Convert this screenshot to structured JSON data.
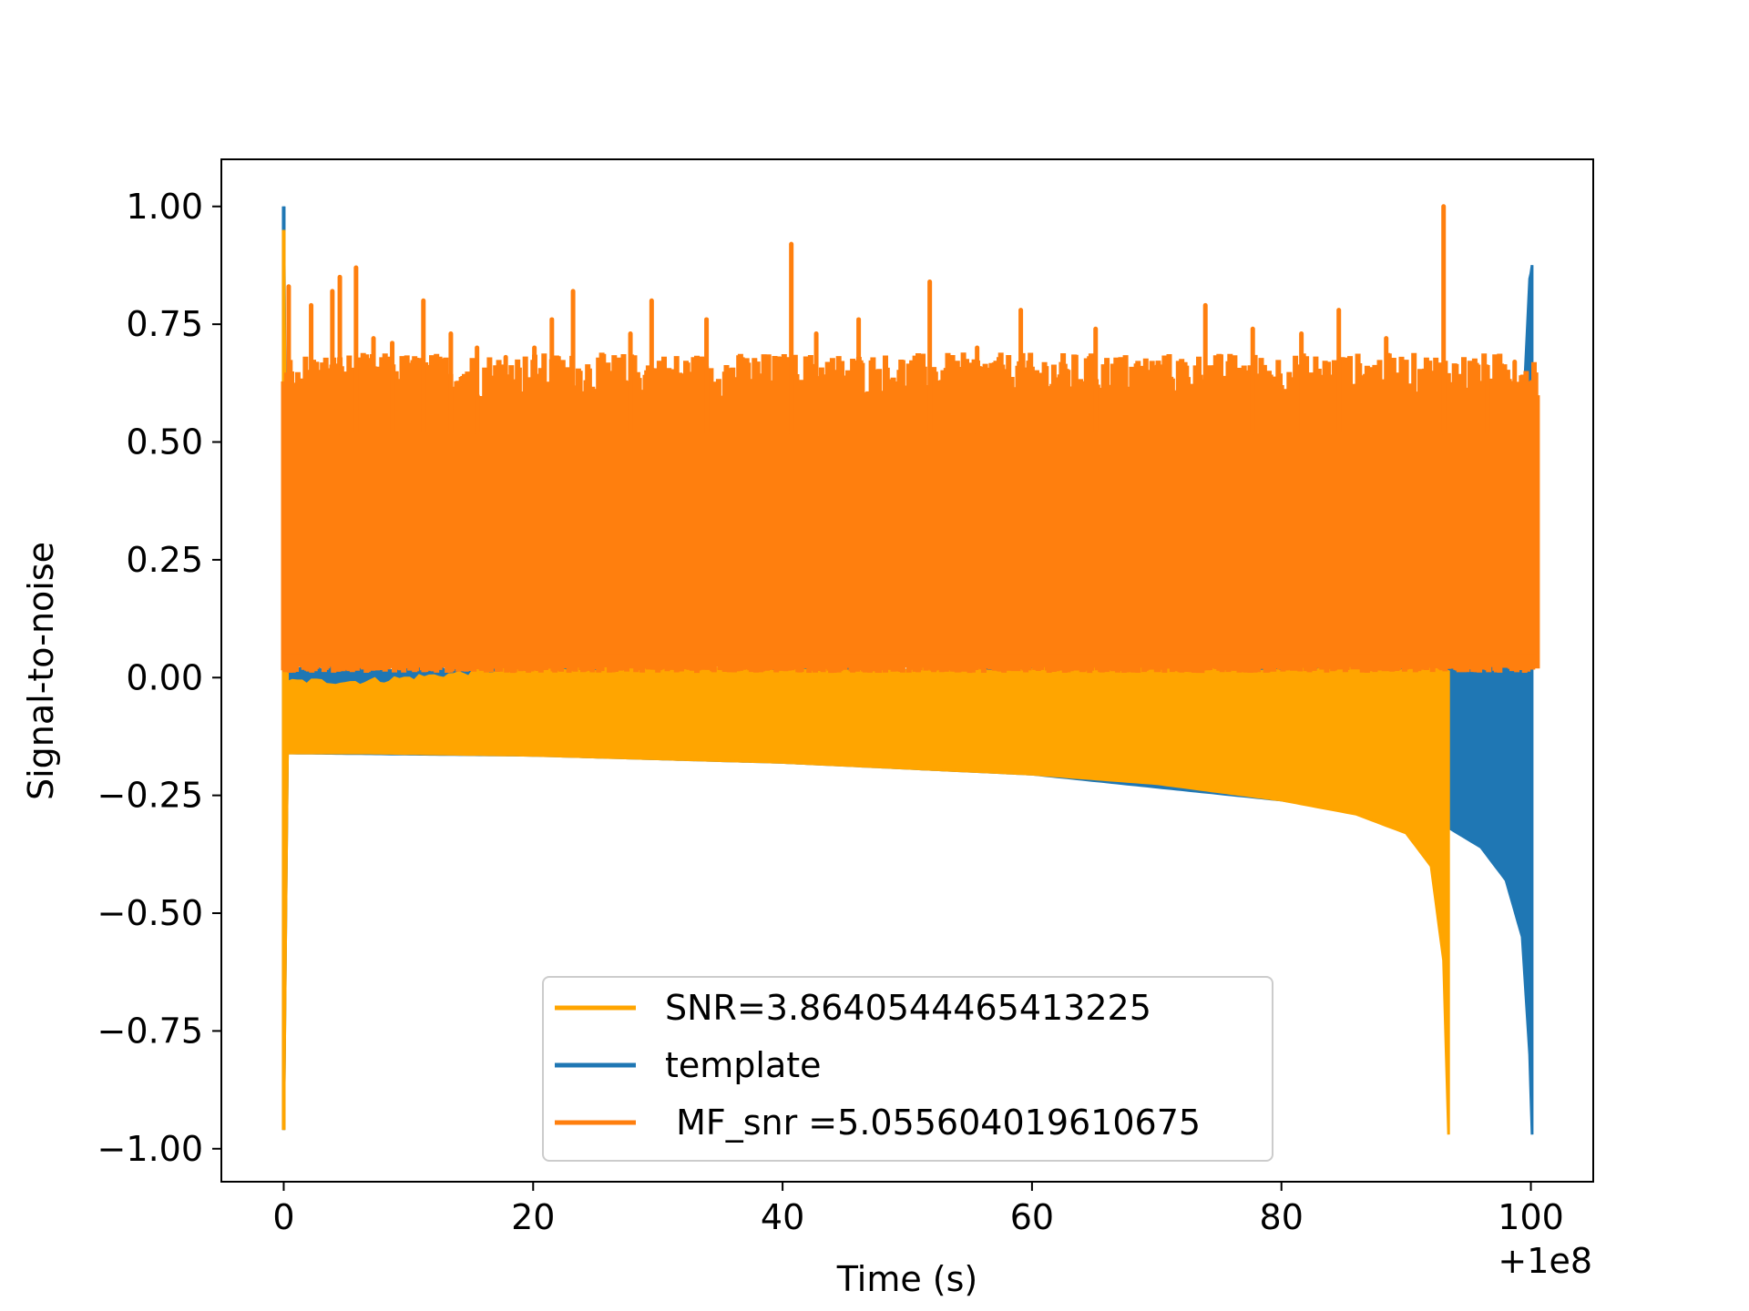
{
  "chart_data": {
    "type": "line",
    "title": "",
    "xlabel": "Time (s)",
    "ylabel": "Signal-to-noise",
    "x_offset_label": "+1e8",
    "xlim": [
      -5,
      105
    ],
    "ylim": [
      -1.07,
      1.1
    ],
    "xticks": [
      0,
      20,
      40,
      60,
      80,
      100
    ],
    "xtick_labels": [
      "0",
      "20",
      "40",
      "60",
      "80",
      "100"
    ],
    "yticks": [
      -1.0,
      -0.75,
      -0.5,
      -0.25,
      0.0,
      0.25,
      0.5,
      0.75,
      1.0
    ],
    "ytick_labels": [
      "−1.00",
      "−0.75",
      "−0.50",
      "−0.25",
      "0.00",
      "0.25",
      "0.50",
      "0.75",
      "1.00"
    ],
    "grid": false,
    "legend_position": "lower-center",
    "series": [
      {
        "name": "SNR=3.8640544465413225",
        "color": "#ffa500",
        "kind": "filled-band",
        "points": [
          {
            "x": 0.0,
            "lower": -0.96,
            "upper": 0.95
          },
          {
            "x": 0.3,
            "lower": -0.16,
            "upper": -0.01
          },
          {
            "x": 6.5,
            "lower": -0.16,
            "upper": -0.01
          },
          {
            "x": 20,
            "lower": -0.165,
            "upper": 0.02
          },
          {
            "x": 40,
            "lower": -0.18,
            "upper": 0.02
          },
          {
            "x": 60,
            "lower": -0.205,
            "upper": 0.02
          },
          {
            "x": 70,
            "lower": -0.225,
            "upper": 0.02
          },
          {
            "x": 80,
            "lower": -0.26,
            "upper": 0.02
          },
          {
            "x": 86,
            "lower": -0.29,
            "upper": 0.02
          },
          {
            "x": 90,
            "lower": -0.33,
            "upper": 0.02
          },
          {
            "x": 92,
            "lower": -0.4,
            "upper": 0.02
          },
          {
            "x": 93,
            "lower": -0.6,
            "upper": 0.02
          },
          {
            "x": 93.4,
            "lower": -0.97,
            "upper": 0.02
          }
        ]
      },
      {
        "name": "template",
        "color": "#1f77b4",
        "kind": "filled-band",
        "points": [
          {
            "x": 0.0,
            "lower": -0.96,
            "upper": 1.0
          },
          {
            "x": 0.3,
            "lower": -0.16,
            "upper": 0.02
          },
          {
            "x": 20,
            "lower": -0.165,
            "upper": 0.02
          },
          {
            "x": 40,
            "lower": -0.18,
            "upper": 0.02
          },
          {
            "x": 60,
            "lower": -0.205,
            "upper": 0.02
          },
          {
            "x": 80,
            "lower": -0.26,
            "upper": 0.02
          },
          {
            "x": 90,
            "lower": -0.3,
            "upper": 0.02
          },
          {
            "x": 93.5,
            "lower": -0.32,
            "upper": 0.02
          },
          {
            "x": 96,
            "lower": -0.36,
            "upper": 0.02
          },
          {
            "x": 98,
            "lower": -0.43,
            "upper": 0.02
          },
          {
            "x": 99.3,
            "lower": -0.55,
            "upper": 0.5
          },
          {
            "x": 99.9,
            "lower": -0.8,
            "upper": 0.85
          },
          {
            "x": 100.1,
            "lower": -0.97,
            "upper": 0.87
          }
        ]
      },
      {
        "name": " MF_snr =5.055604019610675",
        "color": "#ff7f0e",
        "kind": "noise-band",
        "band_lower": 0.01,
        "band_upper": 0.62,
        "x_start": 0,
        "x_end": 100.5,
        "peaks": [
          {
            "x": 0.4,
            "y": 0.83
          },
          {
            "x": 2.2,
            "y": 0.79
          },
          {
            "x": 3.9,
            "y": 0.82
          },
          {
            "x": 4.5,
            "y": 0.85
          },
          {
            "x": 5.8,
            "y": 0.87
          },
          {
            "x": 7.2,
            "y": 0.72
          },
          {
            "x": 8.7,
            "y": 0.71
          },
          {
            "x": 11.2,
            "y": 0.8
          },
          {
            "x": 13.4,
            "y": 0.73
          },
          {
            "x": 15.5,
            "y": 0.7
          },
          {
            "x": 17.8,
            "y": 0.68
          },
          {
            "x": 20.1,
            "y": 0.7
          },
          {
            "x": 21.5,
            "y": 0.76
          },
          {
            "x": 23.2,
            "y": 0.82
          },
          {
            "x": 27.8,
            "y": 0.73
          },
          {
            "x": 29.5,
            "y": 0.8
          },
          {
            "x": 33.9,
            "y": 0.76
          },
          {
            "x": 40.7,
            "y": 0.92
          },
          {
            "x": 42.7,
            "y": 0.73
          },
          {
            "x": 46.1,
            "y": 0.76
          },
          {
            "x": 51.8,
            "y": 0.84
          },
          {
            "x": 55.6,
            "y": 0.7
          },
          {
            "x": 59.1,
            "y": 0.78
          },
          {
            "x": 65.1,
            "y": 0.74
          },
          {
            "x": 70.0,
            "y": 0.66
          },
          {
            "x": 73.9,
            "y": 0.79
          },
          {
            "x": 77.7,
            "y": 0.74
          },
          {
            "x": 81.6,
            "y": 0.73
          },
          {
            "x": 84.6,
            "y": 0.78
          },
          {
            "x": 88.4,
            "y": 0.72
          },
          {
            "x": 93.0,
            "y": 1.0
          },
          {
            "x": 96.5,
            "y": 0.66
          },
          {
            "x": 98.7,
            "y": 0.67
          }
        ]
      }
    ]
  }
}
